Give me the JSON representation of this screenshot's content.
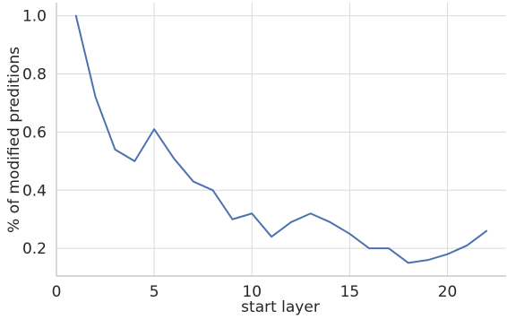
{
  "chart_data": {
    "type": "line",
    "title": "",
    "xlabel": "start layer",
    "ylabel": "% of modified preditions",
    "xlim": [
      0,
      23
    ],
    "ylim": [
      0.105,
      1.045
    ],
    "x_ticks": [
      0,
      5,
      10,
      15,
      20
    ],
    "y_ticks": [
      0.2,
      0.4,
      0.6,
      0.8,
      1.0
    ],
    "x_tick_labels": [
      "0",
      "5",
      "10",
      "15",
      "20"
    ],
    "y_tick_labels": [
      "0.2",
      "0.4",
      "0.6",
      "0.8",
      "1.0"
    ],
    "grid": true,
    "series": [
      {
        "color": "#4c72b0",
        "x": [
          1,
          2,
          3,
          4,
          5,
          6,
          7,
          8,
          9,
          10,
          11,
          12,
          13,
          14,
          15,
          16,
          17,
          18,
          19,
          20,
          21,
          22
        ],
        "y": [
          1.0,
          0.72,
          0.54,
          0.5,
          0.61,
          0.51,
          0.43,
          0.4,
          0.3,
          0.32,
          0.24,
          0.29,
          0.32,
          0.29,
          0.25,
          0.2,
          0.2,
          0.15,
          0.16,
          0.18,
          0.21,
          0.26
        ]
      }
    ],
    "colors": {
      "grid": "#d9d9d9",
      "axis": "#bfbfbf",
      "text": "#262626"
    }
  }
}
